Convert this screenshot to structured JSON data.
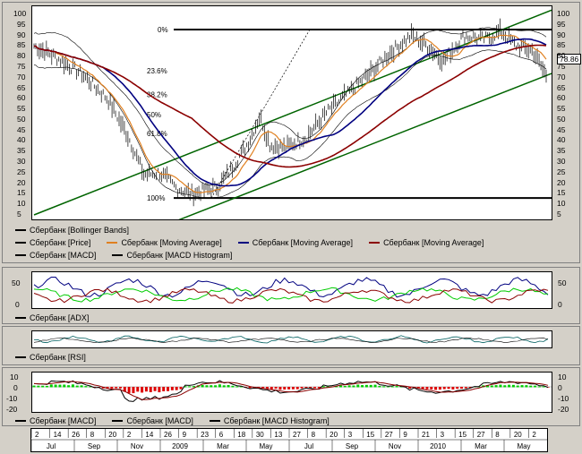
{
  "main_chart": {
    "y_ticks": [
      "100",
      "95",
      "90",
      "85",
      "80",
      "75",
      "70",
      "65",
      "60",
      "55",
      "50",
      "45",
      "40",
      "35",
      "30",
      "25",
      "20",
      "15",
      "10",
      "5"
    ],
    "price_tag": "78.86",
    "fib_labels": [
      "0%",
      "23.6%",
      "38.2%",
      "50%",
      "61.8%",
      "100%"
    ]
  },
  "legend_main": [
    {
      "label": "Сбербанк [Bollinger Bands]",
      "color": "#000000"
    },
    {
      "label": "Сбербанк [Price]",
      "color": "#000000"
    },
    {
      "label": "Сбербанк [Moving Average]",
      "color": "#e08020"
    },
    {
      "label": "Сбербанк [Moving Average]",
      "color": "#000080"
    },
    {
      "label": "Сбербанк [Moving Average]",
      "color": "#8b0000"
    },
    {
      "label": "Сбербанк [MACD]",
      "color": "#000000"
    },
    {
      "label": "Сбербанк [MACD Histogram]",
      "color": "#000000"
    }
  ],
  "adx_panel": {
    "ticks": [
      "50",
      "0"
    ],
    "legend": "Сбербанк [ADX]"
  },
  "rsi_panel": {
    "legend": "Сбербанк [RSI]"
  },
  "macd_panel": {
    "ticks_left": [
      "10",
      "0",
      "-10",
      "-20"
    ],
    "ticks_right": [
      "10",
      "0",
      "-10",
      "-20"
    ],
    "legend": [
      "Сбербанк [MACD]",
      "Сбербанк [MACD]",
      "Сбербанк [MACD Histogram]"
    ]
  },
  "date_axis": {
    "days": [
      "2",
      "14",
      "26",
      "8",
      "20",
      "2",
      "14",
      "26",
      "9",
      "23",
      "6",
      "18",
      "30",
      "13",
      "27",
      "8",
      "20",
      "3",
      "15",
      "27",
      "9",
      "21",
      "3",
      "15",
      "27",
      "8",
      "20",
      "2"
    ],
    "months": [
      "Jul",
      "Sep",
      "Nov",
      "2009",
      "Mar",
      "May",
      "Jul",
      "Sep",
      "Nov",
      "2010",
      "Mar",
      "May"
    ]
  },
  "colors": {
    "green": "#006400",
    "red": "#8b0000",
    "navy": "#000080",
    "orange": "#e08020",
    "hist_green": "#00cc00",
    "hist_red": "#dd0000"
  }
}
